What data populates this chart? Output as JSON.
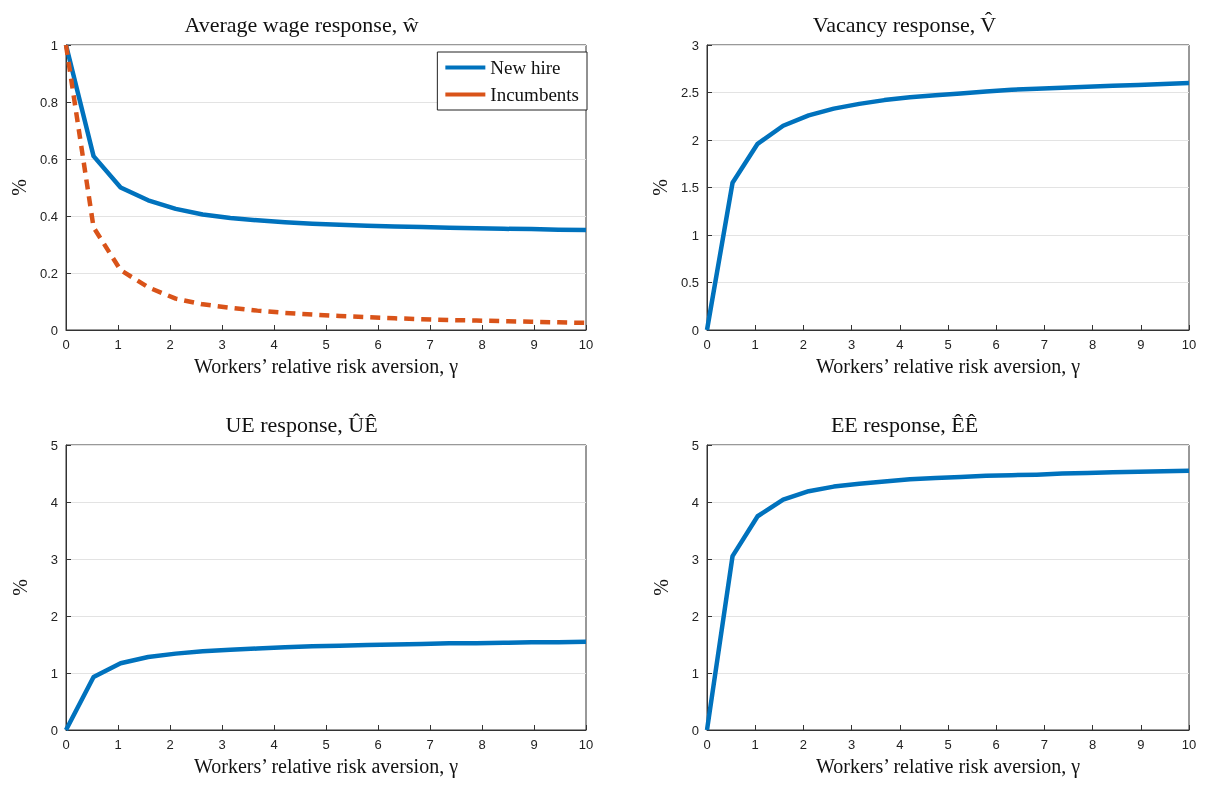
{
  "chart_data": [
    {
      "type": "line",
      "title": "Average wage response, ŵ",
      "xlabel": "Workers’ relative risk aversion, γ",
      "ylabel": "%",
      "x": [
        0,
        0.53,
        1.05,
        1.58,
        2.11,
        2.63,
        3.16,
        3.68,
        4.21,
        4.74,
        5.26,
        5.79,
        6.32,
        6.84,
        7.37,
        7.89,
        8.42,
        8.95,
        9.47,
        10
      ],
      "series": [
        {
          "name": "New hire",
          "color": "#0072bd",
          "line_style": "solid",
          "values": [
            1,
            0.61,
            0.5,
            0.455,
            0.425,
            0.405,
            0.393,
            0.385,
            0.378,
            0.373,
            0.369,
            0.366,
            0.363,
            0.361,
            0.359,
            0.357,
            0.355,
            0.354,
            0.352,
            0.351
          ]
        },
        {
          "name": "Incumbents",
          "color": "#d95319",
          "line_style": "dashed",
          "values": [
            1,
            0.36,
            0.21,
            0.15,
            0.11,
            0.09,
            0.078,
            0.068,
            0.06,
            0.054,
            0.049,
            0.045,
            0.041,
            0.038,
            0.035,
            0.033,
            0.031,
            0.029,
            0.027,
            0.025
          ]
        }
      ],
      "xlim": [
        0,
        10
      ],
      "xticks": [
        0,
        1,
        2,
        3,
        4,
        5,
        6,
        7,
        8,
        9,
        10
      ],
      "ylim": [
        0,
        1
      ],
      "yticks": [
        0,
        0.2,
        0.4,
        0.6,
        0.8,
        1
      ],
      "grid": "y",
      "legend": "top right",
      "marker": "none"
    },
    {
      "type": "line",
      "title": "Vacancy response, V̂",
      "xlabel": "Workers’ relative risk aversion, γ",
      "ylabel": "%",
      "x": [
        0,
        0.53,
        1.05,
        1.58,
        2.11,
        2.63,
        3.16,
        3.68,
        4.21,
        4.74,
        5.26,
        5.79,
        6.32,
        6.84,
        7.37,
        7.89,
        8.42,
        8.95,
        9.47,
        10
      ],
      "series": [
        {
          "color": "#0072bd",
          "line_style": "solid",
          "values": [
            0,
            1.55,
            1.96,
            2.15,
            2.26,
            2.33,
            2.38,
            2.42,
            2.45,
            2.47,
            2.49,
            2.51,
            2.53,
            2.54,
            2.55,
            2.56,
            2.57,
            2.58,
            2.59,
            2.6
          ]
        }
      ],
      "xlim": [
        0,
        10
      ],
      "xticks": [
        0,
        1,
        2,
        3,
        4,
        5,
        6,
        7,
        8,
        9,
        10
      ],
      "ylim": [
        0,
        3
      ],
      "yticks": [
        0,
        0.5,
        1,
        1.5,
        2,
        2.5,
        3
      ],
      "grid": "y",
      "marker": "none"
    },
    {
      "type": "line",
      "title": "UE response, ÛÊ",
      "xlabel": "Workers’ relative risk aversion, γ",
      "ylabel": "%",
      "x": [
        0,
        0.53,
        1.05,
        1.58,
        2.11,
        2.63,
        3.16,
        3.68,
        4.21,
        4.74,
        5.26,
        5.79,
        6.32,
        6.84,
        7.37,
        7.89,
        8.42,
        8.95,
        9.47,
        10
      ],
      "series": [
        {
          "color": "#0072bd",
          "line_style": "solid",
          "values": [
            0,
            0.93,
            1.17,
            1.28,
            1.34,
            1.38,
            1.41,
            1.43,
            1.45,
            1.47,
            1.48,
            1.49,
            1.5,
            1.51,
            1.52,
            1.52,
            1.53,
            1.54,
            1.54,
            1.55
          ]
        }
      ],
      "xlim": [
        0,
        10
      ],
      "xticks": [
        0,
        1,
        2,
        3,
        4,
        5,
        6,
        7,
        8,
        9,
        10
      ],
      "ylim": [
        0,
        5
      ],
      "yticks": [
        0,
        1,
        2,
        3,
        4,
        5
      ],
      "grid": "y",
      "marker": "none"
    },
    {
      "type": "line",
      "title": "EE response, ÊÊ",
      "xlabel": "Workers’ relative risk aversion, γ",
      "ylabel": "%",
      "x": [
        0,
        0.53,
        1.05,
        1.58,
        2.11,
        2.63,
        3.16,
        3.68,
        4.21,
        4.74,
        5.26,
        5.79,
        6.32,
        6.84,
        7.37,
        7.89,
        8.42,
        8.95,
        9.47,
        10
      ],
      "series": [
        {
          "color": "#0072bd",
          "line_style": "solid",
          "values": [
            0,
            3.05,
            3.75,
            4.04,
            4.19,
            4.27,
            4.32,
            4.36,
            4.4,
            4.42,
            4.44,
            4.46,
            4.47,
            4.48,
            4.5,
            4.51,
            4.52,
            4.53,
            4.54,
            4.55
          ]
        }
      ],
      "xlim": [
        0,
        10
      ],
      "xticks": [
        0,
        1,
        2,
        3,
        4,
        5,
        6,
        7,
        8,
        9,
        10
      ],
      "ylim": [
        0,
        5
      ],
      "yticks": [
        0,
        1,
        2,
        3,
        4,
        5
      ],
      "grid": "y",
      "marker": "none"
    }
  ]
}
